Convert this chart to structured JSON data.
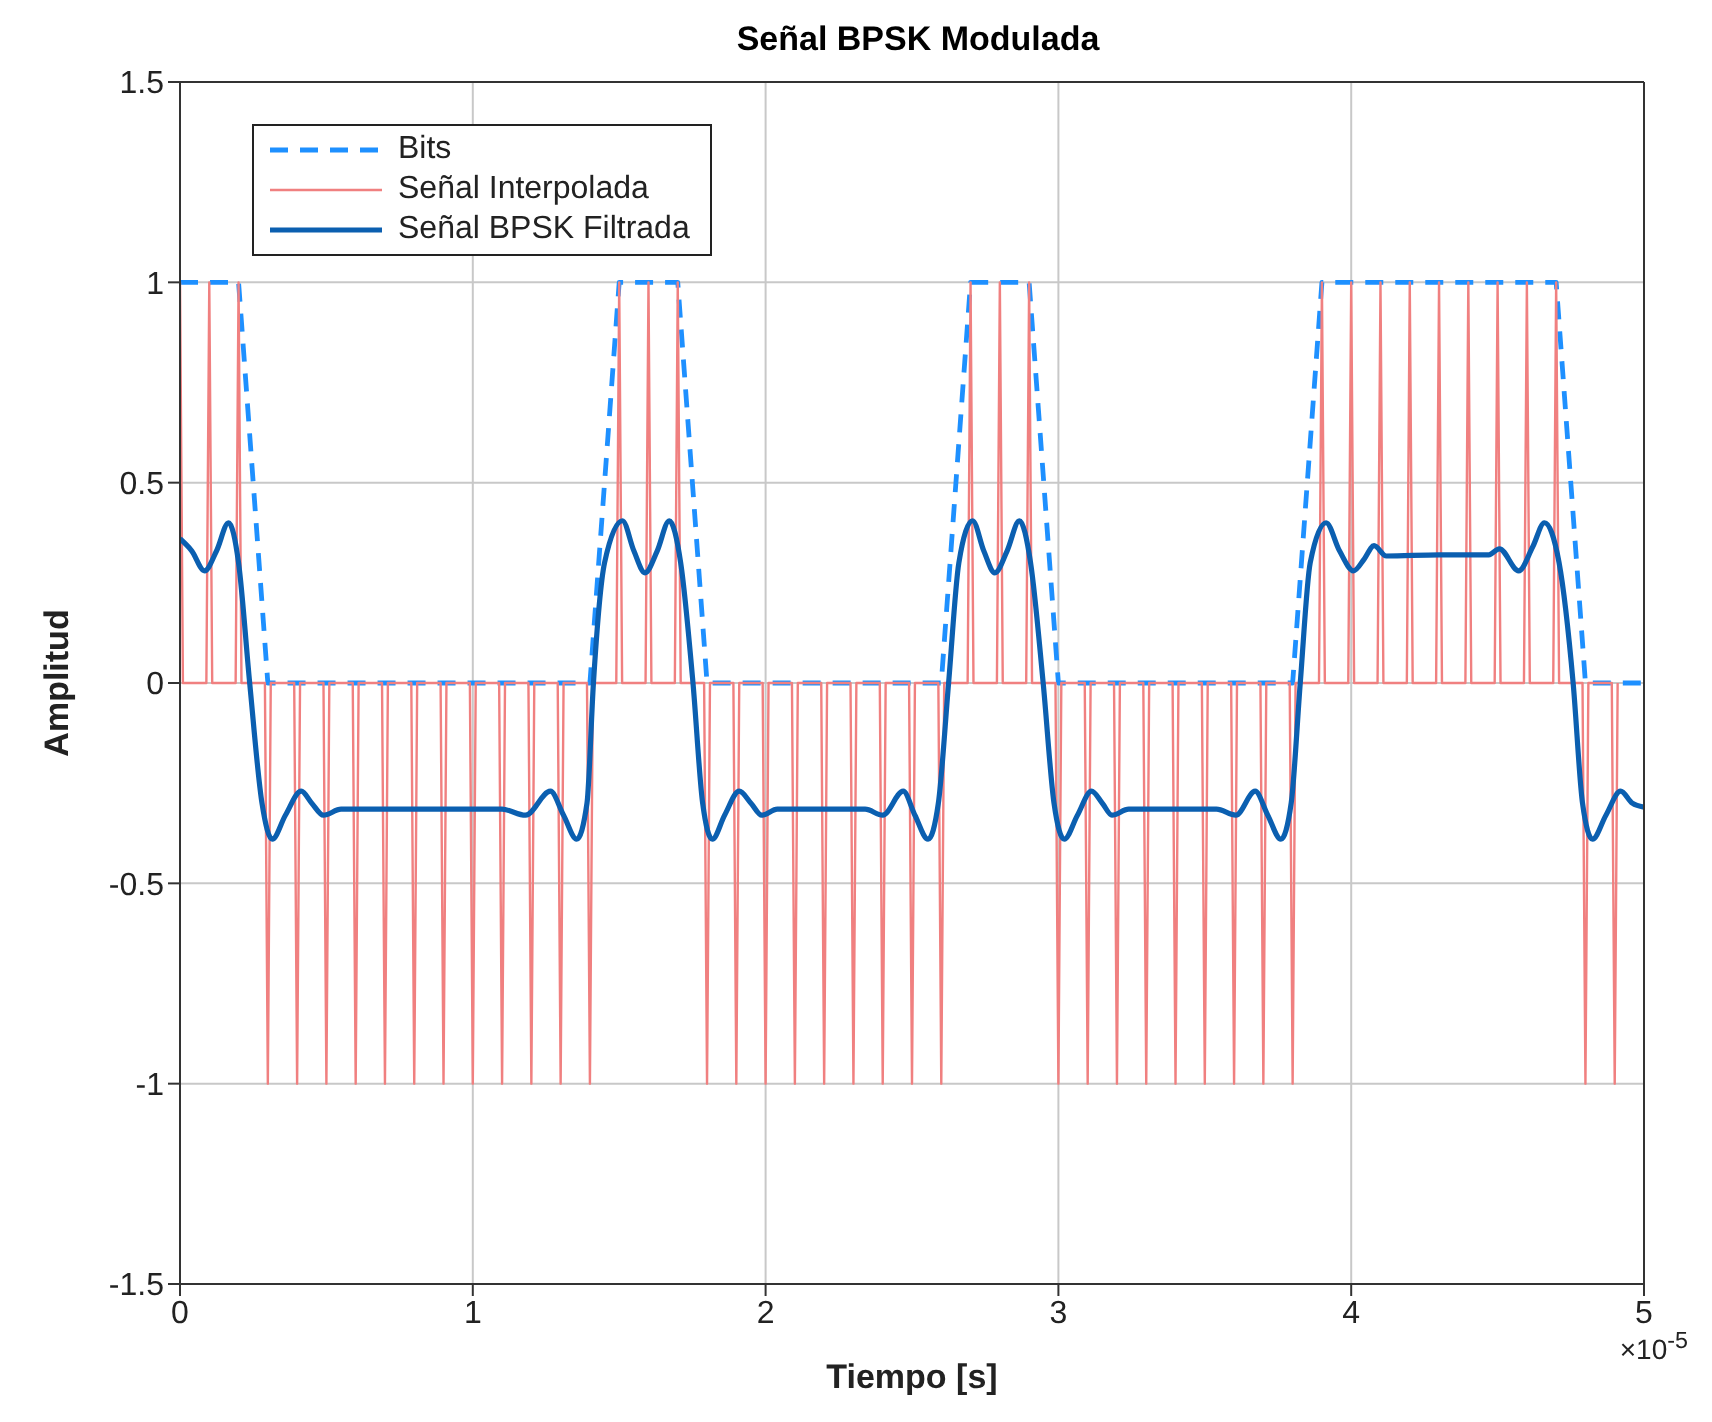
{
  "chart_data": {
    "type": "line",
    "title": "Señal BPSK Modulada",
    "xlabel": "Tiempo [s]",
    "ylabel": "Amplitud",
    "annotations": [
      "×10$^{-5}$"
    ],
    "xlim": [
      0,
      5
    ],
    "xticks": [
      0,
      1,
      2,
      3,
      4,
      5
    ],
    "ylim": [
      -1.5,
      1.5
    ],
    "yticks": [
      -1.5,
      -1,
      -0.5,
      0,
      0.5,
      1,
      1.5
    ],
    "grid": true,
    "legend": "top left",
    "series": [
      {
        "name": "Bits",
        "color": "#1e90ff",
        "line_style": "dashed",
        "x": [
          0,
          0.1,
          0.2,
          0.3,
          0.4,
          0.5,
          0.6,
          0.7,
          0.8,
          0.9,
          1,
          1.1,
          1.2,
          1.3,
          1.4,
          1.5,
          1.6,
          1.7,
          1.8,
          1.9,
          2,
          2.1,
          2.2,
          2.3,
          2.4,
          2.5,
          2.6,
          2.7,
          2.8,
          2.9,
          3,
          3.1,
          3.2,
          3.3,
          3.4,
          3.5,
          3.6,
          3.7,
          3.8,
          3.9,
          4,
          4.1,
          4.2,
          4.3,
          4.4,
          4.5,
          4.6,
          4.7,
          4.8,
          4.9,
          5
        ],
        "values": [
          1,
          1,
          1,
          0,
          0,
          0,
          0,
          0,
          0,
          0,
          0,
          0,
          0,
          0,
          0,
          1,
          1,
          1,
          0,
          0,
          0,
          0,
          0,
          0,
          0,
          0,
          0,
          1,
          1,
          1,
          0,
          0,
          0,
          0,
          0,
          0,
          0,
          0,
          0,
          1,
          1,
          1,
          1,
          1,
          1,
          1,
          1,
          1,
          0,
          0,
          0
        ]
      },
      {
        "name": "Señal Interpolada",
        "color": "#f08080",
        "line_style": "solid",
        "x": [
          0,
          0.01,
          0.09,
          0.1,
          0.11,
          0.19,
          0.2,
          0.21,
          0.29,
          0.3,
          0.31,
          0.39,
          0.4,
          0.41,
          0.49,
          0.5,
          0.51,
          0.59,
          0.6,
          0.61,
          0.69,
          0.7,
          0.71,
          0.79,
          0.8,
          0.81,
          0.89,
          0.9,
          0.91,
          0.99,
          1,
          1.01,
          1.09,
          1.1,
          1.11,
          1.19,
          1.2,
          1.21,
          1.29,
          1.3,
          1.31,
          1.39,
          1.4,
          1.41,
          1.49,
          1.5,
          1.51,
          1.59,
          1.6,
          1.61,
          1.69,
          1.7,
          1.71,
          1.79,
          1.8,
          1.81,
          1.89,
          1.9,
          1.91,
          1.99,
          2,
          2.01,
          2.09,
          2.1,
          2.11,
          2.19,
          2.2,
          2.21,
          2.29,
          2.3,
          2.31,
          2.39,
          2.4,
          2.41,
          2.49,
          2.5,
          2.51,
          2.59,
          2.6,
          2.61,
          2.69,
          2.7,
          2.71,
          2.79,
          2.8,
          2.81,
          2.89,
          2.9,
          2.91,
          2.99,
          3,
          3.01,
          3.09,
          3.1,
          3.11,
          3.19,
          3.2,
          3.21,
          3.29,
          3.3,
          3.31,
          3.39,
          3.4,
          3.41,
          3.49,
          3.5,
          3.51,
          3.59,
          3.6,
          3.61,
          3.69,
          3.7,
          3.71,
          3.79,
          3.8,
          3.81,
          3.89,
          3.9,
          3.91,
          3.99,
          4,
          4.01,
          4.09,
          4.1,
          4.11,
          4.19,
          4.2,
          4.21,
          4.29,
          4.3,
          4.31,
          4.39,
          4.4,
          4.41,
          4.49,
          4.5,
          4.51,
          4.59,
          4.6,
          4.61,
          4.69,
          4.7,
          4.71,
          4.79,
          4.8,
          4.81,
          4.89,
          4.9,
          4.91
        ],
        "values": [
          1,
          0,
          0,
          1,
          0,
          0,
          1,
          0,
          0,
          -1,
          0,
          0,
          -1,
          0,
          0,
          -1,
          0,
          0,
          -1,
          0,
          0,
          -1,
          0,
          0,
          -1,
          0,
          0,
          -1,
          0,
          0,
          -1,
          0,
          0,
          -1,
          0,
          0,
          -1,
          0,
          0,
          -1,
          0,
          0,
          -1,
          0,
          0,
          1,
          0,
          0,
          1,
          0,
          0,
          1,
          0,
          0,
          -1,
          0,
          0,
          -1,
          0,
          0,
          -1,
          0,
          0,
          -1,
          0,
          0,
          -1,
          0,
          0,
          -1,
          0,
          0,
          -1,
          0,
          0,
          -1,
          0,
          0,
          -1,
          0,
          0,
          1,
          0,
          0,
          1,
          0,
          0,
          1,
          0,
          0,
          -1,
          0,
          0,
          -1,
          0,
          0,
          -1,
          0,
          0,
          -1,
          0,
          0,
          -1,
          0,
          0,
          -1,
          0,
          0,
          -1,
          0,
          0,
          -1,
          0,
          0,
          -1,
          0,
          0,
          1,
          0,
          0,
          1,
          0,
          0,
          1,
          0,
          0,
          1,
          0,
          0,
          1,
          0,
          0,
          1,
          0,
          0,
          1,
          0,
          0,
          1,
          0,
          0,
          1,
          0,
          0,
          -1,
          0,
          0,
          -1,
          0
        ]
      },
      {
        "name": "Señal BPSK Filtrada",
        "color": "#0b5fb0",
        "line_style": "solid",
        "x": [
          0,
          0.04,
          0.084,
          0.125,
          0.166,
          0.2,
          0.238,
          0.28,
          0.315,
          0.36,
          0.414,
          0.45,
          0.49,
          0.55,
          0.7,
          0.9,
          1.1,
          1.18,
          1.265,
          1.31,
          1.355,
          1.39,
          1.412,
          1.45,
          1.511,
          1.55,
          1.588,
          1.63,
          1.671,
          1.71,
          1.752,
          1.785,
          1.818,
          1.86,
          1.91,
          1.95,
          1.987,
          2.04,
          2.2,
          2.34,
          2.4,
          2.47,
          2.51,
          2.555,
          2.59,
          2.625,
          2.66,
          2.707,
          2.745,
          2.783,
          2.825,
          2.867,
          2.905,
          2.948,
          2.985,
          3.02,
          3.065,
          3.113,
          3.15,
          3.183,
          3.24,
          3.4,
          3.54,
          3.606,
          3.672,
          3.715,
          3.76,
          3.795,
          3.826,
          3.86,
          3.914,
          3.96,
          4.008,
          4.045,
          4.078,
          4.12,
          4.3,
          4.47,
          4.506,
          4.572,
          4.62,
          4.66,
          4.71,
          4.758,
          4.79,
          4.824,
          4.87,
          4.92,
          4.96,
          5
        ],
        "values": [
          0.36,
          0.33,
          0.28,
          0.33,
          0.4,
          0.3,
          0,
          -0.3,
          -0.39,
          -0.33,
          -0.27,
          -0.3,
          -0.33,
          -0.315,
          -0.315,
          -0.315,
          -0.315,
          -0.33,
          -0.27,
          -0.33,
          -0.39,
          -0.3,
          0,
          0.3,
          0.405,
          0.33,
          0.275,
          0.33,
          0.405,
          0.3,
          0,
          -0.3,
          -0.39,
          -0.33,
          -0.27,
          -0.3,
          -0.33,
          -0.315,
          -0.315,
          -0.315,
          -0.33,
          -0.27,
          -0.33,
          -0.39,
          -0.3,
          0,
          0.3,
          0.405,
          0.33,
          0.275,
          0.33,
          0.405,
          0.3,
          0,
          -0.3,
          -0.39,
          -0.33,
          -0.27,
          -0.3,
          -0.33,
          -0.315,
          -0.315,
          -0.315,
          -0.33,
          -0.27,
          -0.33,
          -0.39,
          -0.3,
          0,
          0.3,
          0.4,
          0.33,
          0.28,
          0.31,
          0.343,
          0.317,
          0.32,
          0.32,
          0.335,
          0.28,
          0.34,
          0.4,
          0.3,
          0,
          -0.3,
          -0.39,
          -0.33,
          -0.27,
          -0.3,
          -0.31
        ]
      }
    ]
  }
}
